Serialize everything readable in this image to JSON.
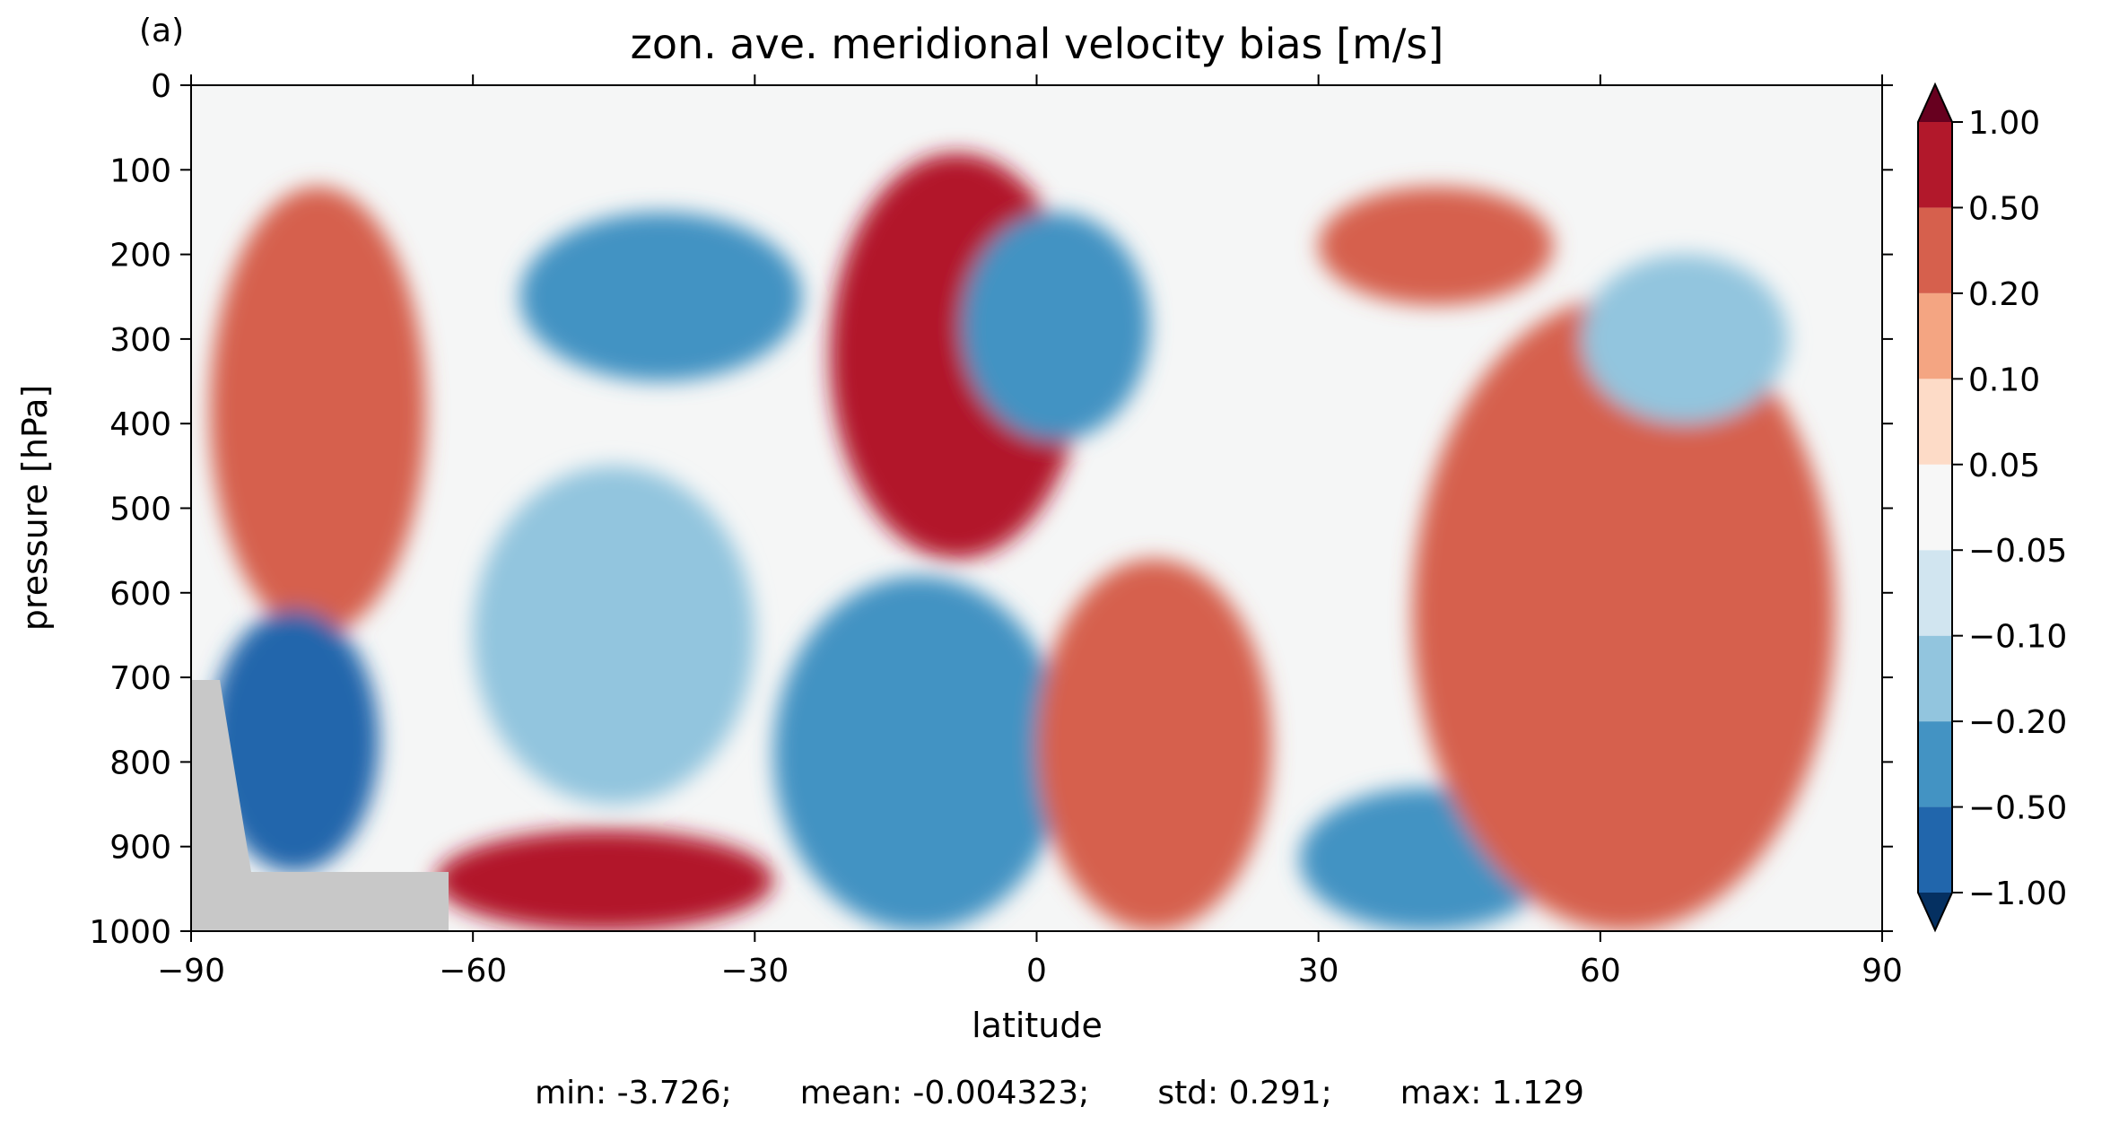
{
  "panel_label": "(a)",
  "stats": {
    "min": "min: -3.726;",
    "mean": "mean: -0.004323;",
    "std": "std: 0.291;",
    "max": "max: 1.129"
  },
  "colors": {
    "neutral": "#f5f6f6",
    "land_mask": "#c8c8c8",
    "levels": [
      "#053061",
      "#2166ac",
      "#4393c3",
      "#92c5de",
      "#d1e5f0",
      "#f7f7f7",
      "#fddbc7",
      "#f4a582",
      "#d6604d",
      "#b2182b",
      "#67001f"
    ]
  },
  "chart_data": {
    "type": "heatmap",
    "subtype": "filled contour",
    "title": "zon. ave. meridional velocity bias [m/s]",
    "xlabel": "latitude",
    "ylabel": "pressure [hPa]",
    "xlim": [
      -90,
      90
    ],
    "ylim": [
      1000,
      0
    ],
    "x_ticks": [
      -90,
      -60,
      -30,
      0,
      30,
      60,
      90
    ],
    "x_tick_labels": [
      "−90",
      "−60",
      "−30",
      "0",
      "30",
      "60",
      "90"
    ],
    "y_ticks": [
      0,
      100,
      200,
      300,
      400,
      500,
      600,
      700,
      800,
      900,
      1000
    ],
    "y_tick_labels": [
      "0",
      "100",
      "200",
      "300",
      "400",
      "500",
      "600",
      "700",
      "800",
      "900",
      "1000"
    ],
    "colorbar": {
      "levels": [
        -1.0,
        -0.5,
        -0.2,
        -0.1,
        -0.05,
        0.05,
        0.1,
        0.2,
        0.5,
        1.0
      ],
      "tick_labels": [
        "−1.00",
        "−0.50",
        "−0.20",
        "−0.10",
        "−0.05",
        "0.05",
        "0.10",
        "0.20",
        "0.50",
        "1.00"
      ],
      "extend": "both",
      "colormap": "RdBu_r"
    },
    "features": [
      {
        "name": "SH high-latitude positive cell",
        "lat": [
          -88,
          -65
        ],
        "p": [
          120,
          650
        ],
        "value": 0.3
      },
      {
        "name": "Antarctic near-surface negative cell",
        "lat": [
          -88,
          -70
        ],
        "p": [
          620,
          930
        ],
        "value": -0.8
      },
      {
        "name": "SH upper negative cell",
        "lat": [
          -55,
          -25
        ],
        "p": [
          150,
          350
        ],
        "value": -0.3
      },
      {
        "name": "SH mid negative cell",
        "lat": [
          -60,
          -30
        ],
        "p": [
          450,
          850
        ],
        "value": -0.15
      },
      {
        "name": "SH surface positive cell",
        "lat": [
          -64,
          -28
        ],
        "p": [
          880,
          1000
        ],
        "value": 0.6
      },
      {
        "name": "tropical positive cell",
        "lat": [
          -22,
          5
        ],
        "p": [
          80,
          560
        ],
        "value": 0.6
      },
      {
        "name": "tropical upper negative cell",
        "lat": [
          -8,
          12
        ],
        "p": [
          150,
          420
        ],
        "value": -0.5
      },
      {
        "name": "tropical lower negative cell",
        "lat": [
          -28,
          3
        ],
        "p": [
          580,
          1000
        ],
        "value": -0.5
      },
      {
        "name": "tropical lower positive cell",
        "lat": [
          0,
          25
        ],
        "p": [
          560,
          1000
        ],
        "value": 0.4
      },
      {
        "name": "NH upper positive cell",
        "lat": [
          30,
          55
        ],
        "p": [
          120,
          260
        ],
        "value": 0.3
      },
      {
        "name": "NH surface negative cell",
        "lat": [
          28,
          55
        ],
        "p": [
          830,
          1000
        ],
        "value": -0.5
      },
      {
        "name": "NH tilted positive band",
        "lat": [
          40,
          85
        ],
        "p": [
          250,
          1000
        ],
        "value": 0.2
      },
      {
        "name": "Arctic upper negative cell",
        "lat": [
          58,
          80
        ],
        "p": [
          200,
          400
        ],
        "value": -0.15
      }
    ]
  }
}
